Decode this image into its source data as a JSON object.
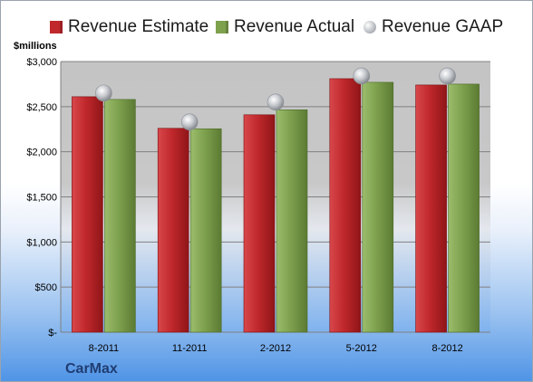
{
  "legend": [
    {
      "label": "Revenue Estimate",
      "color": "#c0282c",
      "marker": "square"
    },
    {
      "label": "Revenue Actual",
      "color": "#7ea14e",
      "marker": "square"
    },
    {
      "label": "Revenue GAAP",
      "color": "#b8bcc2",
      "marker": "circle"
    }
  ],
  "unit_label": "$millions",
  "brand": "CarMax",
  "chart_data": {
    "type": "bar",
    "categories": [
      "8-2011",
      "11-2011",
      "2-2012",
      "5-2012",
      "8-2012"
    ],
    "series": [
      {
        "name": "Revenue Estimate",
        "kind": "bar",
        "color": "#c0282c",
        "values": [
          2610,
          2260,
          2410,
          2810,
          2740
        ]
      },
      {
        "name": "Revenue Actual",
        "kind": "bar",
        "color": "#7ea14e",
        "values": [
          2580,
          2255,
          2465,
          2770,
          2750
        ]
      },
      {
        "name": "Revenue GAAP",
        "kind": "marker",
        "color": "#b8bcc2",
        "values": [
          2650,
          2330,
          2550,
          2840,
          2840
        ]
      }
    ],
    "ylim": [
      0,
      3000
    ],
    "yticks": [
      0,
      500,
      1000,
      1500,
      2000,
      2500,
      3000
    ],
    "ytick_labels": [
      "$-",
      "$500",
      "$1,000",
      "$1,500",
      "$2,000",
      "$2,500",
      "$3,000"
    ],
    "grid": true,
    "legend_position": "top"
  }
}
